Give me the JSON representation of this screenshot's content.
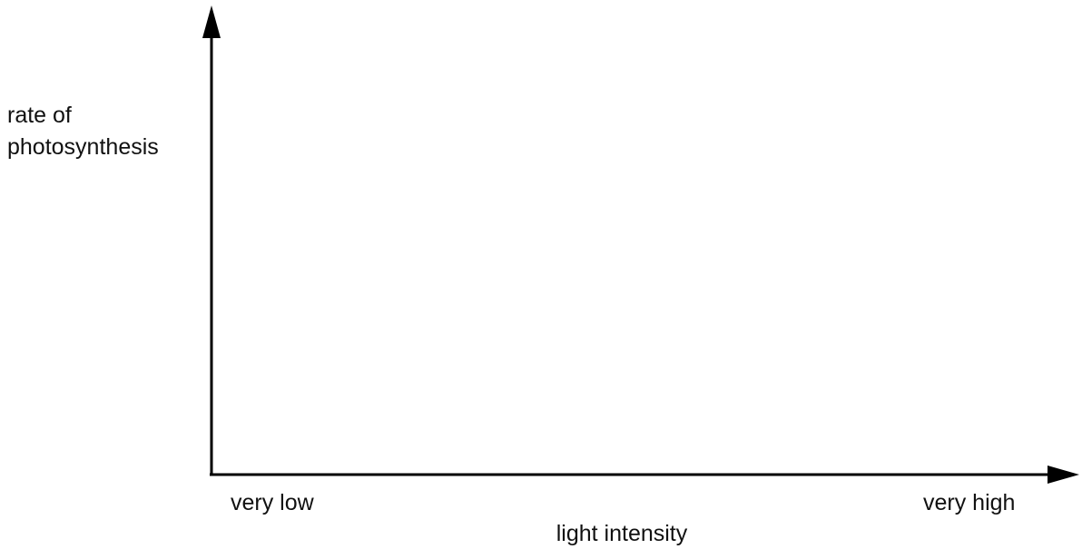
{
  "chart_data": {
    "type": "line",
    "title": "",
    "ylabel_lines": [
      "rate of",
      "photosynthesis"
    ],
    "xlabel": "light intensity",
    "x_tick_labels": [
      "very low",
      "very high"
    ],
    "series": [],
    "grid": false,
    "legend": "none",
    "colors": {
      "axis": "#000000",
      "text": "#111111"
    }
  }
}
